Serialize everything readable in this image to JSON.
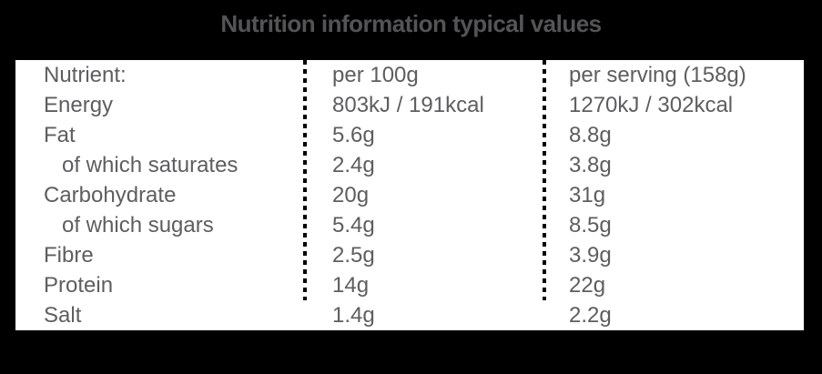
{
  "title": "Nutrition information typical values",
  "colors": {
    "page_background": "#000000",
    "panel_background": "#ffffff",
    "title_text": "#545456",
    "table_text": "#5e5e60",
    "divider": "#000000"
  },
  "table": {
    "header": {
      "label": "Nutrient:",
      "per_100g": "per 100g",
      "per_serving": "per serving (158g)"
    },
    "rows": [
      {
        "label": "Energy",
        "per_100g": "803kJ / 191kcal",
        "per_serving": "1270kJ / 302kcal",
        "indent": false
      },
      {
        "label": "Fat",
        "per_100g": "5.6g",
        "per_serving": "8.8g",
        "indent": false
      },
      {
        "label": "of which saturates",
        "per_100g": "2.4g",
        "per_serving": "3.8g",
        "indent": true
      },
      {
        "label": "Carbohydrate",
        "per_100g": "20g",
        "per_serving": "31g",
        "indent": false
      },
      {
        "label": "of which sugars",
        "per_100g": "5.4g",
        "per_serving": "8.5g",
        "indent": true
      },
      {
        "label": "Fibre",
        "per_100g": "2.5g",
        "per_serving": "3.9g",
        "indent": false
      },
      {
        "label": "Protein",
        "per_100g": "14g",
        "per_serving": "22g",
        "indent": false
      },
      {
        "label": "Salt",
        "per_100g": "1.4g",
        "per_serving": "2.2g",
        "indent": false
      }
    ]
  }
}
